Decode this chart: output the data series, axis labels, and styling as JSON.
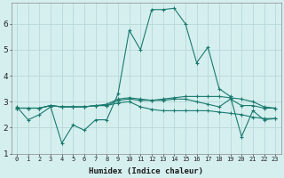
{
  "xlabel": "Humidex (Indice chaleur)",
  "x": [
    0,
    1,
    2,
    3,
    4,
    5,
    6,
    7,
    8,
    9,
    10,
    11,
    12,
    13,
    14,
    15,
    16,
    17,
    18,
    19,
    20,
    21,
    22,
    23
  ],
  "line1": [
    2.8,
    2.3,
    2.5,
    2.8,
    1.4,
    2.1,
    1.9,
    2.3,
    2.3,
    3.3,
    5.75,
    5.0,
    6.55,
    6.55,
    6.6,
    6.0,
    4.5,
    5.1,
    3.5,
    3.2,
    1.65,
    2.65,
    2.3,
    2.35
  ],
  "line2": [
    2.75,
    2.75,
    2.75,
    2.85,
    2.8,
    2.8,
    2.8,
    2.85,
    2.9,
    3.1,
    3.15,
    3.1,
    3.05,
    3.1,
    3.15,
    3.2,
    3.2,
    3.2,
    3.2,
    3.15,
    3.1,
    3.0,
    2.8,
    2.75
  ],
  "line3": [
    2.75,
    2.75,
    2.75,
    2.85,
    2.8,
    2.8,
    2.8,
    2.85,
    2.85,
    2.95,
    3.0,
    2.8,
    2.7,
    2.65,
    2.65,
    2.65,
    2.65,
    2.65,
    2.6,
    2.55,
    2.5,
    2.4,
    2.35,
    2.35
  ],
  "line4": [
    2.75,
    2.75,
    2.75,
    2.85,
    2.8,
    2.8,
    2.8,
    2.85,
    2.85,
    3.05,
    3.1,
    3.05,
    3.05,
    3.05,
    3.1,
    3.1,
    3.0,
    2.9,
    2.8,
    3.1,
    2.85,
    2.85,
    2.75,
    2.75
  ],
  "line_color": "#1a7a6e",
  "bg_color": "#d5efef",
  "grid_color": "#b8d8d8",
  "ylim": [
    1,
    6.8
  ],
  "yticks": [
    1,
    2,
    3,
    4,
    5,
    6
  ],
  "xticks": [
    0,
    1,
    2,
    3,
    4,
    5,
    6,
    7,
    8,
    9,
    10,
    11,
    12,
    13,
    14,
    15,
    16,
    17,
    18,
    19,
    20,
    21,
    22,
    23
  ],
  "xlabel_fontsize": 6.5,
  "ytick_fontsize": 6.5,
  "xtick_fontsize": 5.0
}
